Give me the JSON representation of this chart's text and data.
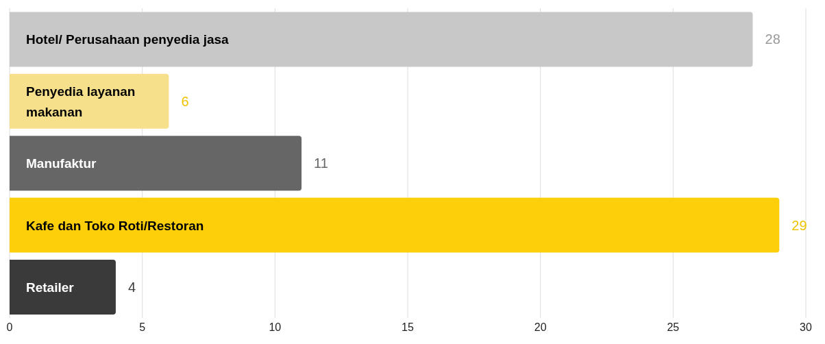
{
  "chart_data": {
    "type": "bar",
    "orientation": "horizontal",
    "categories": [
      "Hotel/ Perusahaan penyedia jasa",
      "Penyedia layanan makanan",
      "Manufaktur",
      "Kafe dan Toko Roti/Restoran",
      "Retailer"
    ],
    "values": [
      28,
      6,
      11,
      29,
      4
    ],
    "colors": [
      "#c8c8c8",
      "#f7e08c",
      "#666666",
      "#fccf0a",
      "#3a3a3a"
    ],
    "xlim": [
      0,
      30
    ],
    "xticks": [
      0,
      5,
      10,
      15,
      20,
      25,
      30
    ],
    "grid": "x",
    "data_labels": true
  }
}
